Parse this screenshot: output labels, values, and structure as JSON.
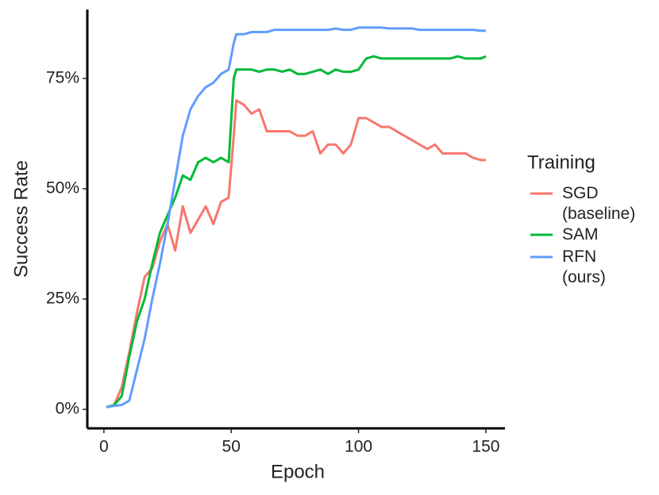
{
  "chart_data": {
    "type": "line",
    "x_label": "Epoch",
    "y_label": "Success Rate",
    "legend_title": "Training",
    "legend": "right",
    "x": [
      1,
      4,
      7,
      10,
      13,
      16,
      19,
      22,
      25,
      28,
      31,
      34,
      37,
      40,
      43,
      46,
      49,
      51,
      52,
      55,
      58,
      61,
      64,
      67,
      70,
      73,
      76,
      79,
      82,
      85,
      88,
      91,
      94,
      97,
      100,
      103,
      106,
      109,
      112,
      115,
      118,
      121,
      124,
      127,
      130,
      133,
      136,
      139,
      142,
      145,
      148,
      150
    ],
    "series": [
      {
        "name": "SGD (baseline)",
        "color": "#F8766D",
        "values": [
          0.5,
          1,
          5,
          13,
          22,
          30,
          32,
          38,
          42,
          36,
          46,
          40,
          43,
          46,
          42,
          47,
          48,
          62,
          70,
          69,
          67,
          68,
          63,
          63,
          63,
          63,
          62,
          62,
          63,
          58,
          60,
          60,
          58,
          60,
          66,
          66,
          65,
          64,
          64,
          63,
          62,
          61,
          60,
          59,
          60,
          58,
          58,
          58,
          58,
          57,
          56.5,
          56.5
        ]
      },
      {
        "name": "SAM",
        "color": "#00BA38",
        "values": [
          0.5,
          1,
          3,
          12,
          20,
          25,
          33,
          40,
          44,
          48,
          53,
          52,
          56,
          57,
          56,
          57,
          56,
          75,
          77,
          77,
          77,
          76.5,
          77,
          77,
          76.5,
          77,
          76,
          76,
          76.5,
          77,
          76,
          77,
          76.5,
          76.5,
          77,
          79.5,
          80,
          79.5,
          79.5,
          79.5,
          79.5,
          79.5,
          79.5,
          79.5,
          79.5,
          79.5,
          79.5,
          80,
          79.5,
          79.5,
          79.5,
          80
        ]
      },
      {
        "name": "RFN (ours)",
        "color": "#619CFF",
        "values": [
          0.5,
          0.8,
          1,
          2,
          9,
          16,
          25,
          33,
          42,
          52,
          62,
          68,
          71,
          73,
          74,
          76,
          77,
          83,
          85,
          85,
          85.5,
          85.5,
          85.5,
          86,
          86,
          86,
          86,
          86,
          86,
          86,
          86,
          86.3,
          86,
          86,
          86.5,
          86.5,
          86.5,
          86.5,
          86.3,
          86.3,
          86.3,
          86.3,
          86,
          86,
          86,
          86,
          86,
          86,
          86,
          86,
          85.8,
          85.8
        ]
      }
    ],
    "xlim": [
      -6.5,
      157.5
    ],
    "xticks": [
      0,
      50,
      100,
      150
    ],
    "ylim": [
      -4.3,
      90.6
    ],
    "yticks": [
      {
        "value": 0,
        "label": "0%"
      },
      {
        "value": 25,
        "label": "25%"
      },
      {
        "value": 50,
        "label": "50%"
      },
      {
        "value": 75,
        "label": "75%"
      }
    ]
  }
}
